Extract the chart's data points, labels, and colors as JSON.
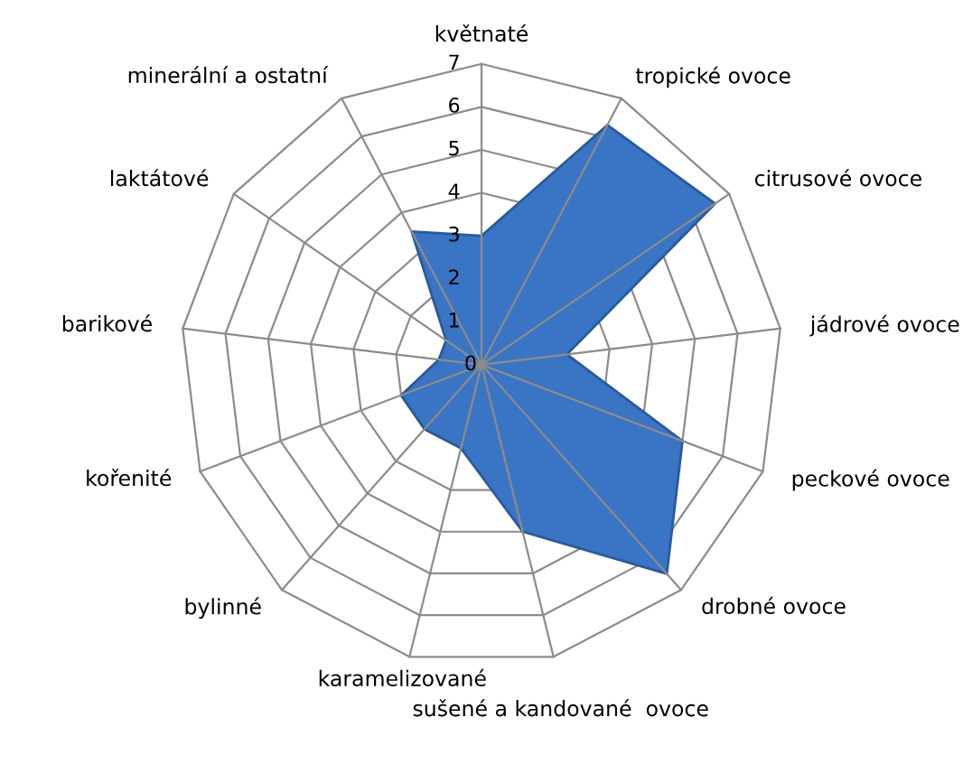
{
  "chart_data": {
    "type": "radar",
    "categories": [
      "květnaté",
      "tropické ovoce",
      "citrusové ovoce",
      "jádrové ovoce",
      "peckové ovoce",
      "drobné ovoce",
      "sušené a kandované  ovoce",
      "karamelizované",
      "bylinné",
      "kořenité",
      "barikové",
      "laktátové",
      "minerální a ostatní"
    ],
    "series": [
      {
        "color": "#3a74c4",
        "values": [
          3,
          6.3,
          6.6,
          2,
          5,
          6.5,
          4,
          2,
          2,
          2,
          1,
          1,
          3.5
        ]
      }
    ],
    "ylim": [
      0,
      7
    ],
    "yticks": [
      0,
      1,
      2,
      3,
      4,
      5,
      6,
      7
    ],
    "grid": true
  }
}
